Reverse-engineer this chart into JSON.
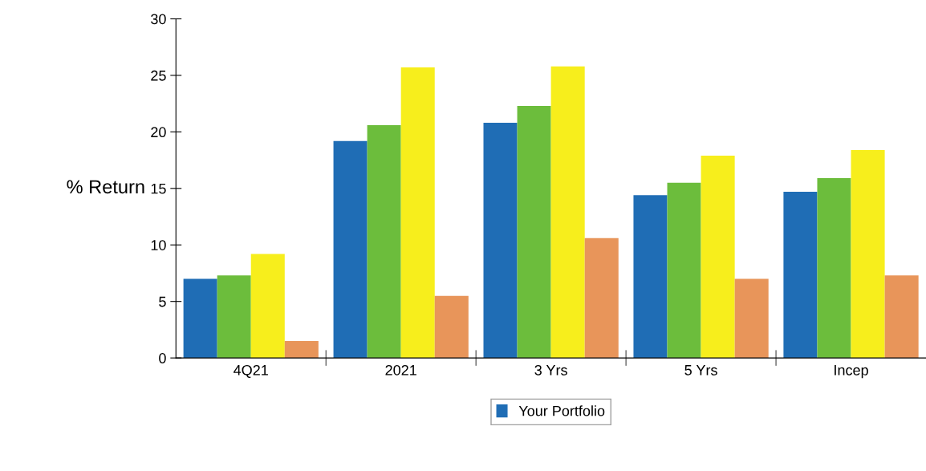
{
  "chart_data": {
    "type": "bar",
    "ylabel": "% Return",
    "categories": [
      "4Q21",
      "2021",
      "3 Yrs",
      "5 Yrs",
      "Incep"
    ],
    "series": [
      {
        "name": "Your Portfolio",
        "color": "#1f6db5",
        "values": [
          7.0,
          19.2,
          20.8,
          14.4,
          14.7
        ]
      },
      {
        "color": "#6cbd3c",
        "values": [
          7.3,
          20.6,
          22.3,
          15.5,
          15.9
        ]
      },
      {
        "color": "#f7ee1c",
        "values": [
          9.2,
          25.7,
          25.8,
          17.9,
          18.4
        ]
      },
      {
        "color": "#e8955a",
        "values": [
          1.5,
          5.5,
          10.6,
          7.0,
          7.3
        ]
      }
    ],
    "ylim": [
      0,
      30
    ],
    "yticks": [
      0,
      5,
      10,
      15,
      20,
      25,
      30
    ],
    "grid": false,
    "legend": "bottom"
  }
}
